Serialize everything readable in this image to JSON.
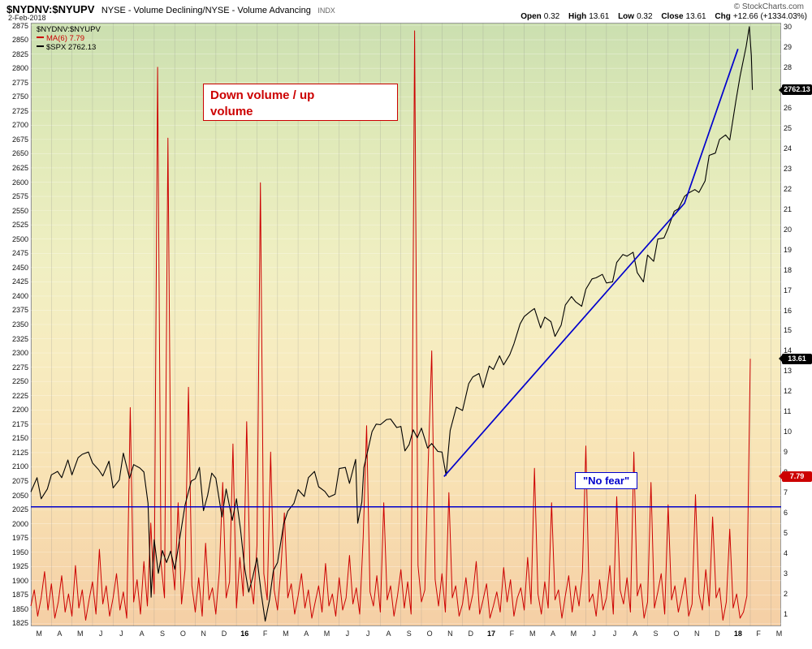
{
  "header": {
    "symbol": "$NYDNV:$NYUPV",
    "description": "NYSE - Volume Declining/NYSE - Volume Advancing",
    "exchange": "INDX",
    "date": "2-Feb-2018",
    "copyright": "© StockCharts.com",
    "quote": {
      "open_label": "Open",
      "open": "0.32",
      "high_label": "High",
      "high": "13.61",
      "low_label": "Low",
      "low": "0.32",
      "close_label": "Close",
      "close": "13.61",
      "chg_label": "Chg",
      "chg": "+12.66 (+1334.03%)"
    }
  },
  "legend": {
    "symbol": "$NYDNV:$NYUPV",
    "ma": "MA(6) 7.79",
    "spx": "$SPX 2762.13"
  },
  "annotations": {
    "down_up_volume": "Down volume / up volume",
    "no_fear": "\"No fear\""
  },
  "axis_markers": [
    {
      "name": "spx-price-marker",
      "label": "2762.13",
      "value": 2762.13,
      "axis": "left",
      "color": "#000000"
    },
    {
      "name": "close-marker",
      "label": "13.61",
      "value": 13.61,
      "axis": "right",
      "color": "#000000"
    },
    {
      "name": "ma-marker",
      "label": "7.79",
      "value": 7.79,
      "axis": "right",
      "color": "#cc0000"
    }
  ],
  "colors": {
    "red": "#cc0000",
    "blue": "#0000cc",
    "black": "#000000"
  },
  "chart_data": {
    "type": "line",
    "title": "$NYDNV:$NYUPV (NYSE Volume Declining / Volume Advancing) with $SPX overlay",
    "x_axis": {
      "start": "Mar 2015",
      "months": 36,
      "span_months": 36.5,
      "labels": [
        "M",
        "A",
        "M",
        "J",
        "J",
        "A",
        "S",
        "O",
        "N",
        "D",
        "16",
        "F",
        "M",
        "A",
        "M",
        "J",
        "J",
        "A",
        "S",
        "O",
        "N",
        "D",
        "17",
        "F",
        "M",
        "A",
        "M",
        "J",
        "J",
        "A",
        "S",
        "O",
        "N",
        "D",
        "18",
        "F",
        "M"
      ]
    },
    "left_axis": {
      "series": "$SPX",
      "label_max": 2875,
      "label_min": 1825,
      "step": 25,
      "plot_max": 2880,
      "plot_min": 1820
    },
    "right_axis": {
      "series": "$NYDNV:$NYUPV",
      "label_max": 30,
      "label_min": 1,
      "step": 1,
      "plot_max": 30.2,
      "plot_min": 0.4
    },
    "grid": true,
    "legend_position": "top-left",
    "series": [
      {
        "id": "ratio-series-line",
        "name": "$NYDNV:$NYUPV",
        "axis": "right",
        "color": "#cc0000",
        "width": 1,
        "x_start": 0,
        "x_step": 0.16667,
        "values": [
          1.4,
          2.2,
          0.9,
          1.8,
          3.1,
          1.2,
          2.5,
          0.8,
          1.6,
          2.9,
          1.1,
          2.0,
          0.9,
          3.4,
          1.3,
          2.2,
          0.7,
          1.7,
          2.6,
          1.0,
          4.2,
          1.5,
          2.4,
          0.9,
          1.8,
          3.0,
          1.2,
          2.1,
          0.8,
          11.2,
          1.6,
          2.7,
          1.0,
          3.6,
          1.4,
          5.5,
          2.0,
          28.0,
          3.5,
          1.8,
          24.5,
          4.0,
          2.2,
          6.5,
          1.5,
          3.2,
          12.2,
          2.4,
          1.1,
          2.8,
          0.9,
          4.5,
          1.7,
          2.3,
          1.0,
          3.1,
          7.5,
          1.8,
          2.6,
          9.4,
          1.3,
          3.8,
          1.9,
          10.5,
          2.8,
          1.5,
          4.4,
          22.3,
          3.0,
          1.7,
          9.0,
          2.2,
          1.2,
          3.3,
          6.0,
          1.8,
          2.5,
          1.0,
          1.9,
          3.0,
          1.3,
          2.2,
          0.8,
          1.6,
          2.4,
          1.1,
          3.5,
          1.4,
          2.0,
          0.9,
          2.8,
          1.2,
          1.8,
          3.9,
          1.5,
          2.3,
          1.0,
          4.8,
          10.3,
          2.1,
          1.4,
          2.9,
          1.1,
          6.5,
          1.7,
          2.4,
          0.9,
          1.9,
          3.2,
          1.3,
          2.6,
          1.0,
          29.8,
          3.4,
          1.6,
          2.2,
          8.5,
          14.0,
          2.7,
          1.4,
          3.0,
          1.1,
          7.0,
          1.8,
          2.4,
          0.9,
          1.5,
          2.8,
          1.2,
          2.0,
          3.6,
          1.0,
          1.7,
          2.5,
          0.8,
          1.4,
          2.1,
          1.1,
          3.3,
          1.6,
          2.7,
          0.9,
          1.8,
          2.3,
          1.2,
          3.8,
          1.5,
          8.2,
          2.0,
          1.0,
          2.6,
          1.3,
          6.5,
          1.7,
          2.2,
          0.8,
          1.9,
          2.9,
          1.1,
          2.4,
          1.4,
          3.1,
          9.3,
          1.6,
          2.0,
          0.9,
          2.7,
          1.2,
          1.8,
          3.4,
          1.0,
          6.8,
          2.2,
          1.5,
          2.8,
          1.1,
          9.0,
          1.9,
          2.5,
          0.8,
          1.6,
          7.5,
          1.3,
          2.1,
          3.0,
          1.0,
          6.4,
          1.7,
          2.4,
          1.1,
          1.9,
          2.8,
          0.9,
          1.5,
          6.9,
          2.0,
          1.2,
          3.2,
          1.4,
          5.8,
          1.8,
          2.3,
          0.7,
          1.6,
          5.2,
          1.3,
          2.0,
          0.8,
          1.1,
          1.9,
          13.61
        ]
      },
      {
        "id": "spx-series-line",
        "name": "$SPX",
        "axis": "left",
        "color": "#000000",
        "width": 1.1,
        "points": [
          [
            0,
            2056
          ],
          [
            0.3,
            2081
          ],
          [
            0.5,
            2044
          ],
          [
            0.8,
            2061
          ],
          [
            1,
            2086
          ],
          [
            1.3,
            2092
          ],
          [
            1.5,
            2081
          ],
          [
            1.8,
            2112
          ],
          [
            2,
            2086
          ],
          [
            2.3,
            2116
          ],
          [
            2.5,
            2122
          ],
          [
            2.8,
            2126
          ],
          [
            3,
            2107
          ],
          [
            3.3,
            2095
          ],
          [
            3.5,
            2084
          ],
          [
            3.8,
            2110
          ],
          [
            4,
            2063
          ],
          [
            4.3,
            2077
          ],
          [
            4.5,
            2124
          ],
          [
            4.8,
            2080
          ],
          [
            5,
            2104
          ],
          [
            5.3,
            2098
          ],
          [
            5.5,
            2091
          ],
          [
            5.7,
            2036
          ],
          [
            5.85,
            1871
          ],
          [
            6,
            1972
          ],
          [
            6.2,
            1913
          ],
          [
            6.4,
            1953
          ],
          [
            6.6,
            1932
          ],
          [
            6.8,
            1952
          ],
          [
            7,
            1920
          ],
          [
            7.3,
            1987
          ],
          [
            7.5,
            2033
          ],
          [
            7.8,
            2075
          ],
          [
            8,
            2079
          ],
          [
            8.2,
            2099
          ],
          [
            8.4,
            2023
          ],
          [
            8.6,
            2050
          ],
          [
            8.8,
            2089
          ],
          [
            9,
            2080
          ],
          [
            9.3,
            2012
          ],
          [
            9.5,
            2061
          ],
          [
            9.8,
            2006
          ],
          [
            10,
            2044
          ],
          [
            10.2,
            1990
          ],
          [
            10.4,
            1922
          ],
          [
            10.6,
            1880
          ],
          [
            10.8,
            1907
          ],
          [
            11,
            1940
          ],
          [
            11.2,
            1880
          ],
          [
            11.4,
            1829
          ],
          [
            11.6,
            1865
          ],
          [
            11.8,
            1918
          ],
          [
            12,
            1932
          ],
          [
            12.3,
            2000
          ],
          [
            12.5,
            2022
          ],
          [
            12.8,
            2036
          ],
          [
            13,
            2060
          ],
          [
            13.3,
            2048
          ],
          [
            13.5,
            2081
          ],
          [
            13.8,
            2092
          ],
          [
            14,
            2065
          ],
          [
            14.3,
            2057
          ],
          [
            14.5,
            2047
          ],
          [
            14.8,
            2052
          ],
          [
            15,
            2097
          ],
          [
            15.3,
            2099
          ],
          [
            15.5,
            2071
          ],
          [
            15.8,
            2113
          ],
          [
            15.9,
            2001
          ],
          [
            16.1,
            2038
          ],
          [
            16.2,
            2099
          ],
          [
            16.4,
            2130
          ],
          [
            16.6,
            2162
          ],
          [
            16.8,
            2175
          ],
          [
            17,
            2174
          ],
          [
            17.3,
            2183
          ],
          [
            17.5,
            2184
          ],
          [
            17.8,
            2169
          ],
          [
            18,
            2171
          ],
          [
            18.2,
            2128
          ],
          [
            18.4,
            2139
          ],
          [
            18.6,
            2165
          ],
          [
            18.8,
            2151
          ],
          [
            19,
            2168
          ],
          [
            19.3,
            2133
          ],
          [
            19.5,
            2141
          ],
          [
            19.8,
            2127
          ],
          [
            20,
            2126
          ],
          [
            20.2,
            2085
          ],
          [
            20.4,
            2164
          ],
          [
            20.7,
            2205
          ],
          [
            21,
            2199
          ],
          [
            21.3,
            2246
          ],
          [
            21.5,
            2258
          ],
          [
            21.8,
            2264
          ],
          [
            22,
            2239
          ],
          [
            22.3,
            2277
          ],
          [
            22.5,
            2271
          ],
          [
            22.8,
            2295
          ],
          [
            23,
            2279
          ],
          [
            23.3,
            2297
          ],
          [
            23.5,
            2316
          ],
          [
            23.8,
            2351
          ],
          [
            24,
            2364
          ],
          [
            24.3,
            2373
          ],
          [
            24.5,
            2378
          ],
          [
            24.8,
            2344
          ],
          [
            25,
            2363
          ],
          [
            25.3,
            2355
          ],
          [
            25.5,
            2329
          ],
          [
            25.8,
            2349
          ],
          [
            26,
            2384
          ],
          [
            26.3,
            2399
          ],
          [
            26.5,
            2390
          ],
          [
            26.8,
            2382
          ],
          [
            27,
            2412
          ],
          [
            27.3,
            2430
          ],
          [
            27.5,
            2432
          ],
          [
            27.8,
            2438
          ],
          [
            28,
            2423
          ],
          [
            28.3,
            2425
          ],
          [
            28.5,
            2459
          ],
          [
            28.8,
            2473
          ],
          [
            29,
            2470
          ],
          [
            29.3,
            2477
          ],
          [
            29.5,
            2441
          ],
          [
            29.8,
            2425
          ],
          [
            30,
            2472
          ],
          [
            30.3,
            2461
          ],
          [
            30.5,
            2500
          ],
          [
            30.8,
            2502
          ],
          [
            31,
            2519
          ],
          [
            31.3,
            2549
          ],
          [
            31.5,
            2553
          ],
          [
            31.8,
            2575
          ],
          [
            32,
            2581
          ],
          [
            32.3,
            2587
          ],
          [
            32.5,
            2582
          ],
          [
            32.8,
            2602
          ],
          [
            33,
            2647
          ],
          [
            33.3,
            2651
          ],
          [
            33.5,
            2675
          ],
          [
            33.8,
            2683
          ],
          [
            34,
            2674
          ],
          [
            34.3,
            2743
          ],
          [
            34.5,
            2786
          ],
          [
            34.8,
            2839
          ],
          [
            34.95,
            2873
          ],
          [
            35.05,
            2822
          ],
          [
            35.1,
            2762
          ]
        ]
      },
      {
        "id": "trendline",
        "name": "Rising trendline",
        "axis": "left",
        "color": "#0000cc",
        "width": 1.7,
        "points": [
          [
            20.1,
            2083
          ],
          [
            31.8,
            2563
          ],
          [
            34.4,
            2834
          ]
        ]
      },
      {
        "id": "no-fear-line",
        "name": "No fear horizontal line",
        "axis": "right",
        "color": "#0000cc",
        "width": 1.5,
        "points": [
          [
            0,
            6.3
          ],
          [
            36.5,
            6.3
          ]
        ]
      }
    ]
  }
}
